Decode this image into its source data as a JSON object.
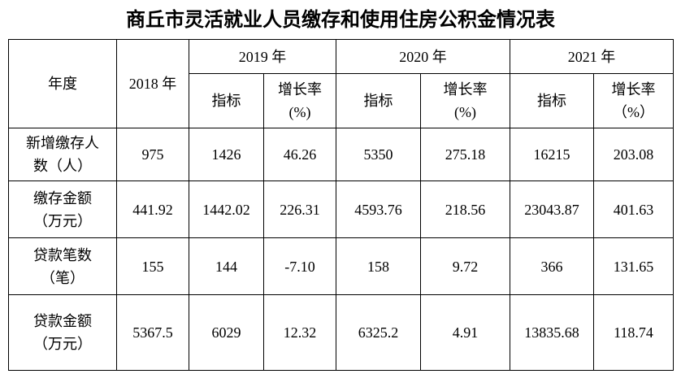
{
  "title": "商丘市灵活就业人员缴存和使用住房公积金情况表",
  "table": {
    "header": {
      "row_label": "年度",
      "base_year": "2018 年",
      "groups": [
        {
          "year": "2019 年",
          "value_label": "指标",
          "growth_label": "增长率",
          "growth_unit": "(%)"
        },
        {
          "year": "2020 年",
          "value_label": "指标",
          "growth_label": "增长率",
          "growth_unit": "(%)"
        },
        {
          "year": "2021 年",
          "value_label": "指标",
          "growth_label": "增长率",
          "growth_unit": "（%）"
        }
      ]
    },
    "rows": [
      {
        "label": [
          "新增缴存人",
          "数（人）"
        ],
        "cells": [
          "975",
          "1426",
          "46.26",
          "5350",
          "275.18",
          "16215",
          "203.08"
        ]
      },
      {
        "label": [
          "缴存金额",
          "（万元）"
        ],
        "cells": [
          "441.92",
          "1442.02",
          "226.31",
          "4593.76",
          "218.56",
          "23043.87",
          "401.63"
        ]
      },
      {
        "label": [
          "贷款笔数",
          "（笔）"
        ],
        "cells": [
          "155",
          "144",
          "-7.10",
          "158",
          "9.72",
          "366",
          "131.65"
        ]
      },
      {
        "label": [
          "贷款金额",
          "（万元）"
        ],
        "cells": [
          "5367.5",
          "6029",
          "12.32",
          "6325.2",
          "4.91",
          "13835.68",
          "118.74"
        ]
      }
    ]
  }
}
